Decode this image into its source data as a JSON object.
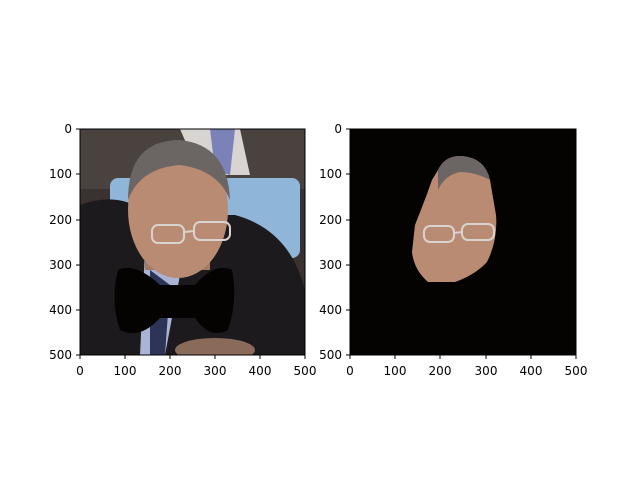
{
  "figure": {
    "panels": [
      {
        "id": "left",
        "image_content": "portrait-with-bowtie-mask",
        "x_ticks": [
          "0",
          "100",
          "200",
          "300",
          "400",
          "500"
        ],
        "y_ticks": [
          "0",
          "100",
          "200",
          "300",
          "400",
          "500"
        ],
        "x_range": [
          0,
          500
        ],
        "y_range": [
          0,
          500
        ]
      },
      {
        "id": "right",
        "image_content": "segmented-face-on-black",
        "x_ticks": [
          "0",
          "100",
          "200",
          "300",
          "400",
          "500"
        ],
        "y_ticks": [
          "0",
          "100",
          "200",
          "300",
          "400",
          "500"
        ],
        "x_range": [
          0,
          500
        ],
        "y_range": [
          0,
          500
        ]
      }
    ],
    "colors": {
      "background_dark": "#2a2422",
      "mask_black": "#050202",
      "suit": "#1c1a1d",
      "chair_blue": "#8fb6d8",
      "shirt_lavender": "#a9b4d6",
      "skin": "#b98b72",
      "hair": "#6b6663",
      "tie": "#2e3458"
    }
  }
}
